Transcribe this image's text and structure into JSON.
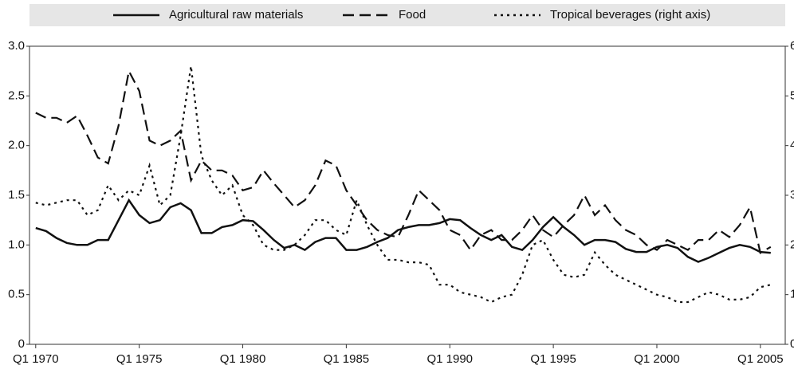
{
  "chart_data": {
    "type": "line",
    "x": [
      1970,
      1970.5,
      1971,
      1971.5,
      1972,
      1972.5,
      1973,
      1973.5,
      1974,
      1974.5,
      1975,
      1975.5,
      1976,
      1976.5,
      1977,
      1977.5,
      1978,
      1978.5,
      1979,
      1979.5,
      1980,
      1980.5,
      1981,
      1981.5,
      1982,
      1982.5,
      1983,
      1983.5,
      1984,
      1984.5,
      1985,
      1985.5,
      1986,
      1986.5,
      1987,
      1987.5,
      1988,
      1988.5,
      1989,
      1989.5,
      1990,
      1990.5,
      1991,
      1991.5,
      1992,
      1992.5,
      1993,
      1993.5,
      1994,
      1994.5,
      1995,
      1995.5,
      1996,
      1996.5,
      1997,
      1997.5,
      1998,
      1998.5,
      1999,
      1999.5,
      2000,
      2000.5,
      2001,
      2001.5,
      2002,
      2002.5,
      2003,
      2003.5,
      2004,
      2004.5,
      2005,
      2005.5
    ],
    "series": [
      {
        "name": "Agricultural raw materials",
        "color": "#111111",
        "dash": "solid",
        "values": [
          1.17,
          1.14,
          1.07,
          1.02,
          1.0,
          1.0,
          1.05,
          1.05,
          1.25,
          1.45,
          1.3,
          1.22,
          1.25,
          1.38,
          1.42,
          1.35,
          1.12,
          1.12,
          1.18,
          1.2,
          1.25,
          1.24,
          1.15,
          1.05,
          0.97,
          1.0,
          0.95,
          1.03,
          1.07,
          1.07,
          0.95,
          0.95,
          0.98,
          1.03,
          1.07,
          1.15,
          1.18,
          1.2,
          1.2,
          1.22,
          1.26,
          1.25,
          1.17,
          1.1,
          1.05,
          1.1,
          0.98,
          0.95,
          1.05,
          1.18,
          1.28,
          1.18,
          1.1,
          1.0,
          1.05,
          1.05,
          1.03,
          0.96,
          0.93,
          0.93,
          0.98,
          1.0,
          0.97,
          0.88,
          0.83,
          0.87,
          0.92,
          0.97,
          1.0,
          0.98,
          0.93,
          0.92
        ]
      },
      {
        "name": "Food",
        "color": "#111111",
        "dash": "dashed",
        "values": [
          2.33,
          2.28,
          2.28,
          2.23,
          2.3,
          2.1,
          1.88,
          1.82,
          2.2,
          2.75,
          2.55,
          2.05,
          2.0,
          2.05,
          2.15,
          1.65,
          1.85,
          1.75,
          1.75,
          1.7,
          1.55,
          1.58,
          1.75,
          1.62,
          1.5,
          1.38,
          1.45,
          1.6,
          1.85,
          1.8,
          1.55,
          1.4,
          1.25,
          1.15,
          1.1,
          1.08,
          1.3,
          1.55,
          1.45,
          1.35,
          1.15,
          1.1,
          0.95,
          1.1,
          1.15,
          1.05,
          1.05,
          1.15,
          1.3,
          1.15,
          1.08,
          1.2,
          1.3,
          1.5,
          1.3,
          1.4,
          1.25,
          1.15,
          1.1,
          1.0,
          0.95,
          1.05,
          1.0,
          0.95,
          1.05,
          1.05,
          1.15,
          1.08,
          1.2,
          1.38,
          0.92,
          0.98
        ]
      },
      {
        "name": "Tropical beverages (right axis)",
        "color": "#111111",
        "dash": "dotted",
        "axis": "y2",
        "values": [
          2.85,
          2.8,
          2.85,
          2.9,
          2.9,
          2.6,
          2.7,
          3.2,
          2.9,
          3.1,
          3.0,
          3.6,
          2.8,
          3.0,
          4.2,
          5.6,
          3.8,
          3.3,
          3.0,
          3.2,
          2.6,
          2.4,
          2.0,
          1.9,
          1.9,
          2.0,
          2.2,
          2.5,
          2.5,
          2.3,
          2.2,
          2.9,
          2.4,
          2.0,
          1.7,
          1.7,
          1.65,
          1.65,
          1.6,
          1.2,
          1.2,
          1.05,
          1.0,
          0.95,
          0.85,
          0.95,
          1.0,
          1.4,
          2.0,
          2.1,
          1.7,
          1.4,
          1.35,
          1.4,
          1.85,
          1.6,
          1.4,
          1.3,
          1.2,
          1.1,
          1.0,
          0.95,
          0.85,
          0.85,
          0.95,
          1.05,
          1.0,
          0.9,
          0.9,
          0.95,
          1.15,
          1.2
        ]
      }
    ],
    "xlim": [
      1969.7,
      2006.2
    ],
    "xticks": [
      {
        "value": 1970,
        "label": "Q1 1970"
      },
      {
        "value": 1975,
        "label": "Q1 1975"
      },
      {
        "value": 1980,
        "label": "Q1 1980"
      },
      {
        "value": 1985,
        "label": "Q1 1985"
      },
      {
        "value": 1990,
        "label": "Q1 1990"
      },
      {
        "value": 1995,
        "label": "Q1 1995"
      },
      {
        "value": 2000,
        "label": "Q1 2000"
      },
      {
        "value": 2005,
        "label": "Q1 2005"
      }
    ],
    "ylim": [
      0,
      3
    ],
    "yticks": [
      0,
      0.5,
      {
        "value": 1,
        "label": "1.0"
      },
      1.5,
      {
        "value": 2,
        "label": "2.0"
      },
      2.5,
      {
        "value": 3,
        "label": "3.0"
      }
    ],
    "y2lim": [
      0,
      6
    ],
    "y2ticks": [
      0,
      1,
      2,
      3,
      4,
      5,
      6
    ],
    "legend": "top"
  }
}
